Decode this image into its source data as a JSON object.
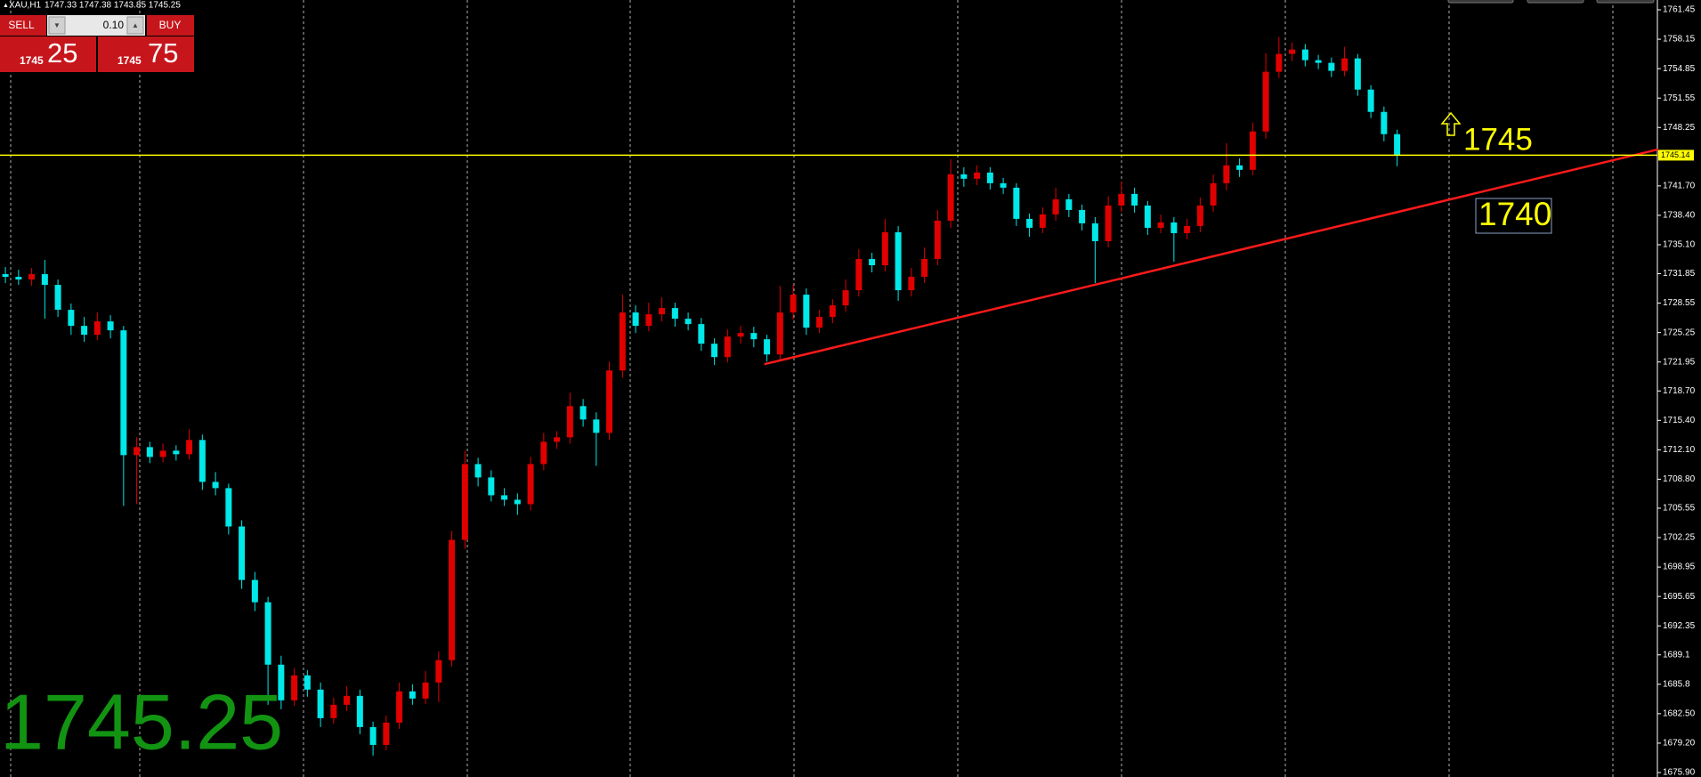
{
  "header": {
    "symbol": "XAU,H1",
    "quote": "1747.33 1747.38 1743.85 1745.25"
  },
  "trade_panel": {
    "sell": "SELL",
    "lot": "0.10",
    "buy": "BUY",
    "bid_prefix": "1745",
    "bid_pips": "25",
    "ask_prefix": "1745",
    "ask_pips": "75"
  },
  "chart_data": {
    "type": "candlestick",
    "open": [
      1731.8,
      1731.5,
      1731.2,
      1731.8,
      1730.6,
      1727.8,
      1726.0,
      1725.0,
      1726.5,
      1725.5,
      1711.5,
      1712.4,
      1711.3,
      1712.0,
      1711.6,
      1713.2,
      1708.5,
      1707.8,
      1703.5,
      1697.5,
      1695.0,
      1688.0,
      1684.0,
      1686.8,
      1685.2,
      1682.0,
      1683.5,
      1684.5,
      1681.0,
      1679.0,
      1681.5,
      1685.0,
      1684.2,
      1686.0,
      1688.5,
      1702.0,
      1710.5,
      1709.0,
      1707.0,
      1706.5,
      1706.0,
      1710.5,
      1713.0,
      1713.5,
      1717.0,
      1715.5,
      1714.0,
      1721.0,
      1727.5,
      1726.0,
      1727.3,
      1728.0,
      1726.8,
      1726.2,
      1724.0,
      1722.5,
      1724.8,
      1725.2,
      1724.5,
      1722.8,
      1727.5,
      1729.5,
      1725.8,
      1727.0,
      1728.3,
      1730.0,
      1733.5,
      1732.8,
      1736.5,
      1730.0,
      1731.5,
      1733.5,
      1737.8,
      1743.0,
      1742.5,
      1743.2,
      1742.0,
      1741.5,
      1738.0,
      1737.0,
      1738.5,
      1740.2,
      1739.0,
      1737.5,
      1735.5,
      1739.5,
      1740.8,
      1739.5,
      1737.0,
      1737.6,
      1736.4,
      1737.2,
      1739.5,
      1742.0,
      1744.0,
      1743.5,
      1747.8,
      1754.5,
      1756.5,
      1757.0,
      1755.8,
      1755.5,
      1754.6,
      1756.0,
      1752.5,
      1750.0,
      1747.5
    ],
    "high": [
      1732.6,
      1732.3,
      1732.5,
      1733.4,
      1731.2,
      1728.5,
      1727.0,
      1727.5,
      1727.2,
      1726.0,
      1713.5,
      1713.0,
      1712.8,
      1712.6,
      1714.4,
      1713.8,
      1709.6,
      1708.3,
      1704.2,
      1698.4,
      1695.6,
      1689.0,
      1687.6,
      1687.4,
      1686.0,
      1684.3,
      1685.6,
      1685.2,
      1681.6,
      1682.3,
      1686.0,
      1685.8,
      1687.3,
      1689.5,
      1703.0,
      1712.0,
      1711.2,
      1709.8,
      1707.8,
      1707.2,
      1711.3,
      1714.0,
      1714.2,
      1718.5,
      1717.8,
      1716.3,
      1722.0,
      1729.5,
      1728.3,
      1728.6,
      1729.2,
      1728.6,
      1727.5,
      1726.9,
      1724.6,
      1725.6,
      1726.0,
      1725.9,
      1725.0,
      1730.5,
      1730.6,
      1730.2,
      1727.8,
      1729.0,
      1731.2,
      1734.6,
      1734.2,
      1738.0,
      1737.2,
      1732.5,
      1734.8,
      1739.0,
      1744.7,
      1743.8,
      1744.0,
      1743.8,
      1742.6,
      1742.0,
      1738.6,
      1739.3,
      1741.5,
      1740.8,
      1739.6,
      1738.2,
      1740.5,
      1742.2,
      1741.5,
      1740.0,
      1738.5,
      1738.2,
      1738.0,
      1740.4,
      1743.0,
      1746.5,
      1744.8,
      1748.8,
      1756.6,
      1758.4,
      1757.8,
      1757.6,
      1756.4,
      1756.1,
      1757.3,
      1756.5,
      1753.0,
      1750.6,
      1748.0
    ],
    "low": [
      1730.8,
      1730.6,
      1730.5,
      1726.8,
      1727.0,
      1725.0,
      1724.2,
      1724.4,
      1724.6,
      1705.8,
      1706.0,
      1710.6,
      1710.7,
      1710.9,
      1711.0,
      1707.6,
      1707.0,
      1702.6,
      1696.5,
      1694.0,
      1683.5,
      1683.0,
      1683.4,
      1684.4,
      1681.0,
      1681.4,
      1682.8,
      1680.2,
      1677.8,
      1678.4,
      1680.8,
      1683.5,
      1683.6,
      1683.8,
      1687.8,
      1701.0,
      1708.0,
      1706.3,
      1705.8,
      1704.8,
      1705.3,
      1709.8,
      1712.2,
      1712.8,
      1714.7,
      1710.3,
      1713.2,
      1720.2,
      1725.2,
      1725.4,
      1726.5,
      1725.9,
      1725.5,
      1723.2,
      1721.6,
      1721.9,
      1724.0,
      1723.6,
      1722.0,
      1722.2,
      1726.7,
      1725.0,
      1725.2,
      1726.3,
      1727.6,
      1729.3,
      1732.0,
      1732.1,
      1728.8,
      1729.3,
      1730.8,
      1732.8,
      1737.0,
      1741.6,
      1741.8,
      1741.3,
      1740.8,
      1737.2,
      1736.0,
      1736.4,
      1737.8,
      1738.2,
      1736.7,
      1730.8,
      1734.8,
      1738.8,
      1738.7,
      1736.2,
      1736.4,
      1733.2,
      1735.7,
      1736.5,
      1738.8,
      1741.2,
      1742.7,
      1742.9,
      1747.0,
      1753.8,
      1755.7,
      1755.1,
      1754.8,
      1753.9,
      1754.0,
      1751.8,
      1749.3,
      1746.7,
      1743.9
    ],
    "close": [
      1731.5,
      1731.2,
      1731.8,
      1730.6,
      1727.8,
      1726.0,
      1725.0,
      1726.5,
      1725.5,
      1711.5,
      1712.4,
      1711.3,
      1712.0,
      1711.6,
      1713.2,
      1708.5,
      1707.8,
      1703.5,
      1697.5,
      1695.0,
      1688.0,
      1684.0,
      1686.8,
      1685.2,
      1682.0,
      1683.5,
      1684.5,
      1681.0,
      1679.0,
      1681.5,
      1685.0,
      1684.2,
      1686.0,
      1688.5,
      1702.0,
      1710.5,
      1709.0,
      1707.0,
      1706.5,
      1706.0,
      1710.5,
      1713.0,
      1713.5,
      1717.0,
      1715.5,
      1714.0,
      1721.0,
      1727.5,
      1726.0,
      1727.3,
      1728.0,
      1726.8,
      1726.2,
      1724.0,
      1722.5,
      1724.8,
      1725.2,
      1724.5,
      1722.8,
      1727.5,
      1729.5,
      1725.8,
      1727.0,
      1728.3,
      1730.0,
      1733.5,
      1732.8,
      1736.5,
      1730.0,
      1731.5,
      1733.5,
      1737.8,
      1743.0,
      1742.5,
      1743.2,
      1742.0,
      1741.5,
      1738.0,
      1737.0,
      1738.5,
      1740.2,
      1739.0,
      1737.5,
      1735.5,
      1739.5,
      1740.8,
      1739.5,
      1737.0,
      1737.6,
      1736.4,
      1737.2,
      1739.5,
      1742.0,
      1744.0,
      1743.5,
      1747.8,
      1754.5,
      1756.5,
      1757.0,
      1755.8,
      1755.5,
      1754.6,
      1756.0,
      1752.5,
      1750.0,
      1747.5,
      1745.1
    ],
    "up_color": "#e00000",
    "down_color": "#00e8e8",
    "ylim": [
      1675.4,
      1762.55
    ],
    "yticks": [
      1761.45,
      1758.15,
      1754.85,
      1751.55,
      1748.25,
      {
        "value": 1741.7,
        "label": "1741.70"
      },
      {
        "value": 1738.4,
        "label": "1738.40"
      },
      {
        "value": 1735.1,
        "label": "1735.10"
      },
      1731.85,
      1728.55,
      1725.25,
      1721.95,
      {
        "value": 1718.7,
        "label": "1718.70"
      },
      {
        "value": 1715.4,
        "label": "1715.40"
      },
      {
        "value": 1712.1,
        "label": "1712.10"
      },
      {
        "value": 1708.8,
        "label": "1708.80"
      },
      1705.55,
      1702.25,
      1698.95,
      1695.65,
      1692.35,
      1689.1,
      1685.8,
      {
        "value": 1682.5,
        "label": "1682.50"
      },
      {
        "value": 1679.2,
        "label": "1679.20"
      },
      {
        "value": 1675.9,
        "label": "1675.90"
      }
    ],
    "price_line": {
      "value": 1745.14,
      "color": "#ffff00"
    },
    "trendline": {
      "color": "#ff1a1a",
      "x": [
        57.8,
        125.9
      ],
      "y": [
        1721.7,
        1745.8
      ]
    },
    "annotation_resistance": "1745",
    "annotation_support": "1740",
    "last_price": "1745.25"
  }
}
